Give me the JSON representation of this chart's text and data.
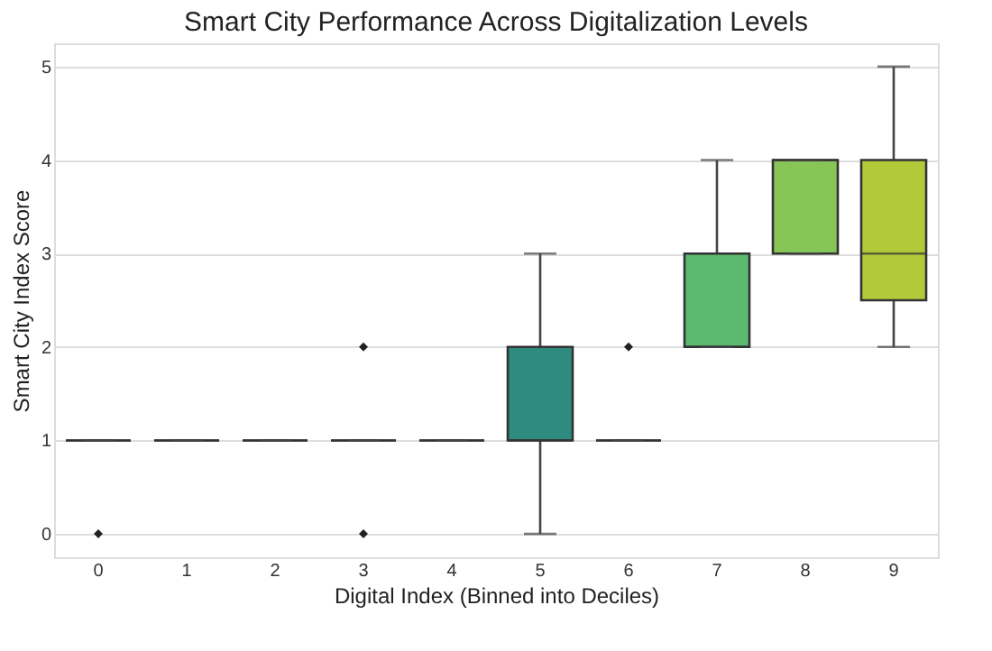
{
  "chart_data": {
    "type": "box",
    "title": "Smart City Performance Across Digitalization Levels",
    "xlabel": "Digital Index (Binned into Deciles)",
    "ylabel": "Smart City Index Score",
    "categories": [
      "0",
      "1",
      "2",
      "3",
      "4",
      "5",
      "6",
      "7",
      "8",
      "9"
    ],
    "colors": [
      "#333333",
      "#333333",
      "#333333",
      "#333333",
      "#333333",
      "#2e8b7e",
      "#333333",
      "#5db870",
      "#86c556",
      "#b2c93a"
    ],
    "boxes": [
      {
        "low": 1,
        "q1": 1,
        "median": 1,
        "q3": 1,
        "high": 1,
        "outliers": [
          0
        ]
      },
      {
        "low": 1,
        "q1": 1,
        "median": 1,
        "q3": 1,
        "high": 1
      },
      {
        "low": 1,
        "q1": 1,
        "median": 1,
        "q3": 1,
        "high": 1
      },
      {
        "low": 1,
        "q1": 1,
        "median": 1,
        "q3": 1,
        "high": 1,
        "outliers": [
          2,
          0
        ]
      },
      {
        "low": 1,
        "q1": 1,
        "median": 1,
        "q3": 1,
        "high": 1
      },
      {
        "low": 0,
        "q1": 1,
        "median": 1,
        "q3": 2,
        "high": 3
      },
      {
        "low": 1,
        "q1": 1,
        "median": 1,
        "q3": 1,
        "high": 1,
        "outliers": [
          2
        ]
      },
      {
        "low": 2,
        "q1": 2,
        "median": 2,
        "q3": 3,
        "high": 4
      },
      {
        "low": 3,
        "q1": 3,
        "median": 4,
        "q3": 4,
        "high": 4
      },
      {
        "low": 2,
        "q1": 2.5,
        "median": 3,
        "q3": 4,
        "high": 5
      }
    ],
    "ylim": [
      -0.25,
      5.25
    ],
    "yticks": [
      0,
      1,
      2,
      3,
      4,
      5
    ],
    "grid": "y"
  }
}
